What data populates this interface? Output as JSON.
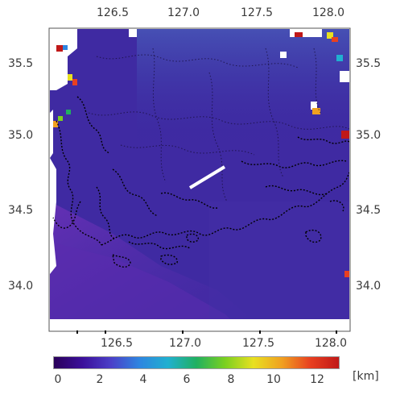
{
  "axes": {
    "lon_ticks": [
      "126.5",
      "127.0",
      "127.5",
      "128.0"
    ],
    "lat_ticks": [
      "35.5",
      "35.0",
      "34.5",
      "34.0"
    ],
    "lon_range": [
      126.2,
      128.05
    ],
    "lat_range": [
      33.68,
      35.73
    ]
  },
  "colorbar": {
    "ticks": [
      "0",
      "2",
      "4",
      "6",
      "8",
      "10",
      "12"
    ],
    "unit": "[km]",
    "range": [
      0,
      13
    ],
    "colormap": [
      "#2a005a",
      "#3b0f9a",
      "#4b3fc8",
      "#2e85e0",
      "#20b0d0",
      "#20b060",
      "#7ad020",
      "#e8e020",
      "#f0a020",
      "#e84020",
      "#c01818"
    ]
  },
  "colors": {
    "sea_cloud_free": "#4a2fa6",
    "land_low": "#3a24a0",
    "north_highland": "#3c3ea8",
    "southwest_sea": "#5a2ab0",
    "coastline": "#000000",
    "transect": "#ffffff",
    "no_data": "#ffffff"
  }
}
